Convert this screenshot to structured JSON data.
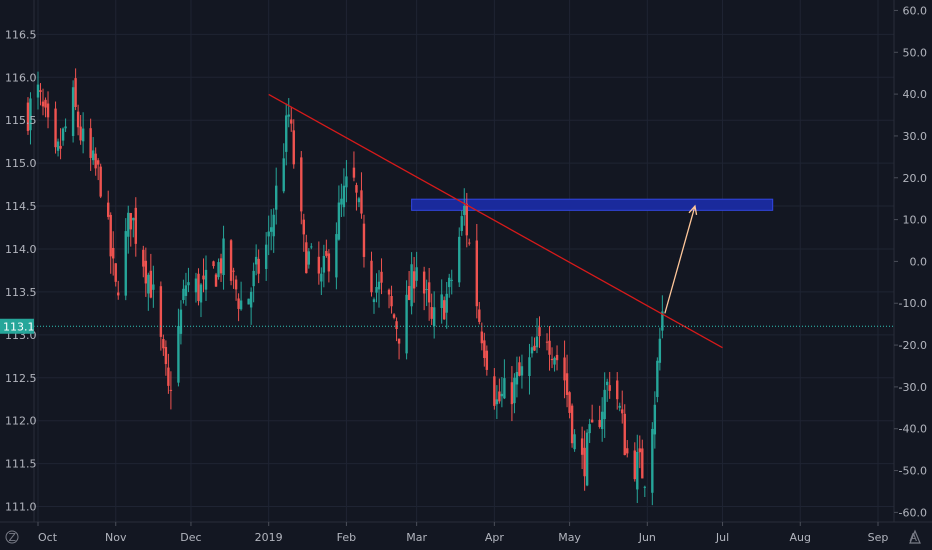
{
  "chart_data": {
    "type": "candlestick",
    "left_axis": {
      "ticks": [
        "116.5",
        "116.0",
        "115.5",
        "115.0",
        "114.5",
        "114.0",
        "113.5",
        "113.0",
        "112.5",
        "112.0",
        "111.5",
        "111.0"
      ],
      "tick_values": [
        116.5,
        116.0,
        115.5,
        115.0,
        114.5,
        114.0,
        113.5,
        113.0,
        112.5,
        112.0,
        111.5,
        111.0
      ],
      "range": [
        110.82,
        116.9
      ]
    },
    "right_axis": {
      "ticks": [
        "60.0",
        "50.0",
        "40.0",
        "30.0",
        "20.0",
        "10.0",
        "0.0",
        "-10.0",
        "-20.0",
        "-30.0",
        "-40.0",
        "-50.0",
        "-60.0"
      ],
      "tick_values": [
        60,
        50,
        40,
        30,
        20,
        10,
        0,
        -10,
        -20,
        -30,
        -40,
        -50,
        -60
      ],
      "range": [
        -62.3,
        62.5
      ]
    },
    "x_axis": {
      "labels": [
        "Oct",
        "Nov",
        "Dec",
        "2019",
        "Feb",
        "Mar",
        "Apr",
        "May",
        "Jun",
        "Jul",
        "Aug",
        "Sep"
      ],
      "dates": [
        "2018-10-01",
        "2018-11-01",
        "2018-12-01",
        "2019-01-01",
        "2019-02-01",
        "2019-03-01",
        "2019-04-01",
        "2019-05-01",
        "2019-06-01",
        "2019-07-01",
        "2019-08-01",
        "2019-09-01"
      ]
    },
    "grid": true,
    "colors": {
      "up": "#26a69a",
      "down": "#ef5350",
      "background": "#131722",
      "grid": "#1f2433",
      "trendline": "#d61a1a",
      "zone": "#1a2a9c",
      "arrow": "#ffc79a",
      "current_price": "#2ec4b6"
    },
    "current_price": {
      "label": "113.1",
      "value": 113.1
    },
    "trendline": {
      "start": {
        "date": "2019-01-01",
        "value": 115.8
      },
      "end": {
        "date": "2019-07-01",
        "value": 112.85
      }
    },
    "resistance_zone": {
      "from_date": "2019-02-27",
      "to_date": "2019-07-21",
      "low": 114.45,
      "high": 114.58
    },
    "projection_arrow": {
      "from": {
        "date": "2019-06-08",
        "value": 113.25
      },
      "to": {
        "date": "2019-06-20",
        "value": 114.5
      }
    },
    "anchors": [
      {
        "date": "2018-09-27",
        "value": 115.6
      },
      {
        "date": "2018-10-01",
        "value": 115.8
      },
      {
        "date": "2018-10-08",
        "value": 115.0
      },
      {
        "date": "2018-10-15",
        "value": 115.7
      },
      {
        "date": "2018-10-20",
        "value": 115.1
      },
      {
        "date": "2018-10-26",
        "value": 114.8
      },
      {
        "date": "2018-11-01",
        "value": 113.5
      },
      {
        "date": "2018-11-07",
        "value": 114.4
      },
      {
        "date": "2018-11-15",
        "value": 113.6
      },
      {
        "date": "2018-11-22",
        "value": 112.3
      },
      {
        "date": "2018-11-29",
        "value": 113.6
      },
      {
        "date": "2018-12-06",
        "value": 113.5
      },
      {
        "date": "2018-12-14",
        "value": 113.9
      },
      {
        "date": "2018-12-22",
        "value": 113.3
      },
      {
        "date": "2019-01-01",
        "value": 114.1
      },
      {
        "date": "2019-01-09",
        "value": 115.55
      },
      {
        "date": "2019-01-15",
        "value": 114.0
      },
      {
        "date": "2019-01-22",
        "value": 113.6
      },
      {
        "date": "2019-01-29",
        "value": 114.4
      },
      {
        "date": "2019-02-03",
        "value": 114.9
      },
      {
        "date": "2019-02-10",
        "value": 113.7
      },
      {
        "date": "2019-02-17",
        "value": 113.4
      },
      {
        "date": "2019-02-23",
        "value": 113.0
      },
      {
        "date": "2019-03-01",
        "value": 113.9
      },
      {
        "date": "2019-03-07",
        "value": 113.1
      },
      {
        "date": "2019-03-14",
        "value": 113.5
      },
      {
        "date": "2019-03-20",
        "value": 114.45
      },
      {
        "date": "2019-03-26",
        "value": 113.2
      },
      {
        "date": "2019-04-02",
        "value": 112.2
      },
      {
        "date": "2019-04-09",
        "value": 112.4
      },
      {
        "date": "2019-04-16",
        "value": 112.7
      },
      {
        "date": "2019-04-22",
        "value": 113.05
      },
      {
        "date": "2019-04-29",
        "value": 112.5
      },
      {
        "date": "2019-05-05",
        "value": 111.4
      },
      {
        "date": "2019-05-12",
        "value": 112.0
      },
      {
        "date": "2019-05-18",
        "value": 112.6
      },
      {
        "date": "2019-05-24",
        "value": 111.6
      },
      {
        "date": "2019-05-31",
        "value": 111.4
      },
      {
        "date": "2019-06-04",
        "value": 112.3
      },
      {
        "date": "2019-06-07",
        "value": 113.25
      }
    ]
  }
}
